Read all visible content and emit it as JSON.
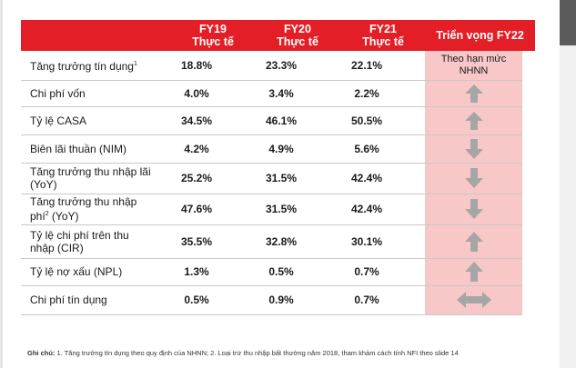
{
  "header": {
    "fy19_line1": "FY19",
    "fy19_line2": "Thực tế",
    "fy20_line1": "FY20",
    "fy20_line2": "Thực tế",
    "fy21_line1": "FY21",
    "fy21_line2": "Thực tế",
    "outlook": "Triển vọng FY22"
  },
  "rows": [
    {
      "label": "Tăng trưởng tín dụng",
      "sup": "1",
      "fy19": "18.8%",
      "fy20": "23.3%",
      "fy21": "22.1%",
      "outlook_line1": "Theo hạn mức",
      "outlook_line2": "NHNN"
    },
    {
      "label": "Chi phí vốn",
      "fy19": "4.0%",
      "fy20": "3.4%",
      "fy21": "2.2%",
      "outlook_icon": "arrow-up-icon"
    },
    {
      "label": "Tỷ lệ CASA",
      "fy19": "34.5%",
      "fy20": "46.1%",
      "fy21": "50.5%",
      "outlook_icon": "arrow-up-icon"
    },
    {
      "label": "Biên lãi thuần (NIM)",
      "fy19": "4.2%",
      "fy20": "4.9%",
      "fy21": "5.6%",
      "outlook_icon": "arrow-down-icon"
    },
    {
      "label_line1": "Tăng trưởng thu nhập lãi",
      "label_line2": "(YoY)",
      "fy19": "25.2%",
      "fy20": "31.5%",
      "fy21": "42.4%",
      "outlook_icon": "arrow-down-icon"
    },
    {
      "label_line1": "Tăng trưởng thu nhập",
      "label_line2a": "phí",
      "sup": "2",
      "label_line2b": " (YoY)",
      "fy19": "47.6%",
      "fy20": "31.5%",
      "fy21": "42.4%",
      "outlook_icon": "arrow-down-icon"
    },
    {
      "label_line1": "Tỷ lệ chi phí trên thu",
      "label_line2": "nhập (CIR)",
      "fy19": "35.5%",
      "fy20": "32.8%",
      "fy21": "30.1%",
      "outlook_icon": "arrow-up-icon"
    },
    {
      "label": "Tỷ lệ nợ xấu (NPL)",
      "fy19": "1.3%",
      "fy20": "0.5%",
      "fy21": "0.7%",
      "outlook_icon": "arrow-up-icon"
    },
    {
      "label": "Chi phí tín dụng",
      "fy19": "0.5%",
      "fy20": "0.9%",
      "fy21": "0.7%",
      "outlook_icon": "arrow-left-right-icon"
    }
  ],
  "footnote": {
    "prefix": "Ghi chú:",
    "text": " 1. Tăng trưởng tín dụng theo quy định của NHNN; 2. Loại trừ thu nhập bất thường năm 2018, tham khảm cách tính NFI theo slide 14"
  },
  "colors": {
    "header_red": "#e41e26",
    "outlook_pink": "#f8c7c8",
    "arrow_gray": "#a6a6a6"
  }
}
